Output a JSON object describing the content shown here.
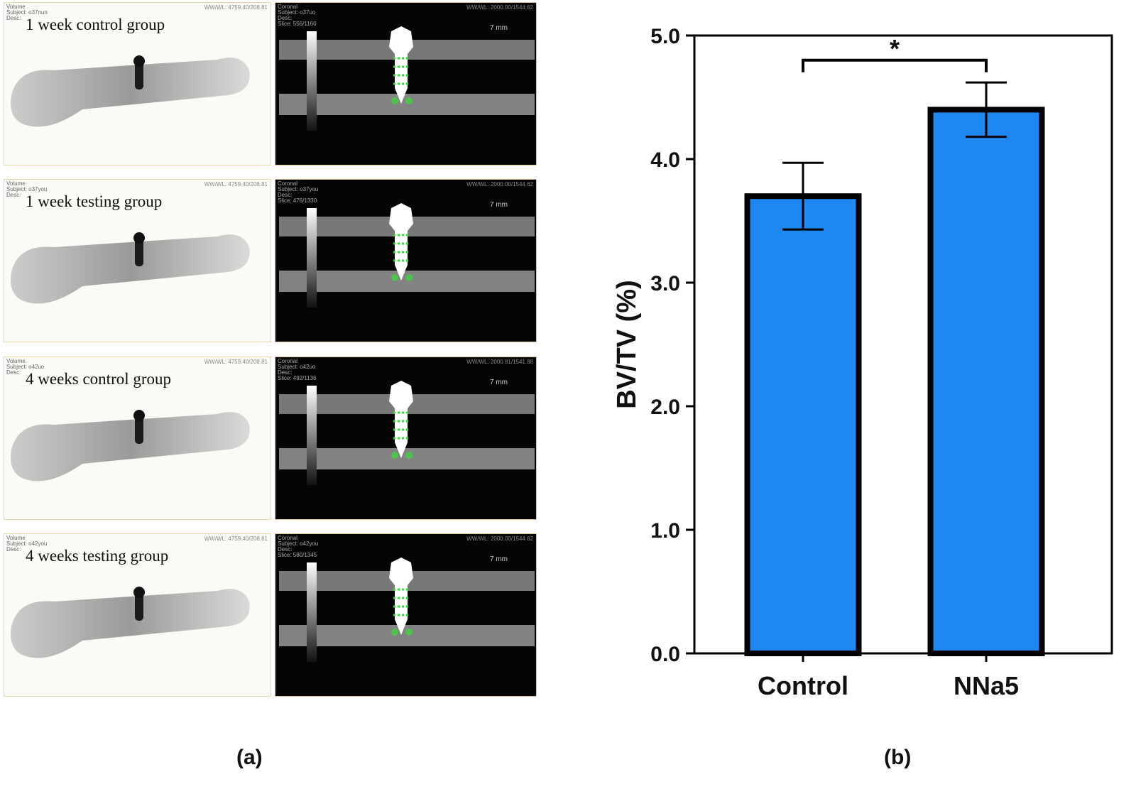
{
  "panel_a": {
    "caption": "(a)",
    "rows": [
      {
        "label": "1 week control group",
        "xray_meta": "Volume\nSubject: o37nun\nDesc:",
        "xray_meta_right": "WW/WL: 4759.40/208.81",
        "ct_meta": "Coronal\nSubject: o37uo\nDesc:\nSlice: 556/1160",
        "ct_meta_right": "WW/WL: 2000.00/1544.62",
        "scale": "7 mm"
      },
      {
        "label": "1 week testing group",
        "xray_meta": "Volume\nSubject: o37you\nDesc:",
        "xray_meta_right": "WW/WL: 4759.40/208.81",
        "ct_meta": "Coronal\nSubject: o37you\nDesc:\nSlice: 476/1330",
        "ct_meta_right": "WW/WL: 2000.00/1544.62",
        "scale": "7 mm"
      },
      {
        "label": "4 weeks control group",
        "xray_meta": "Volume\nSubject: o42uo\nDesc:",
        "xray_meta_right": "WW/WL: 4759.40/208.81",
        "ct_meta": "Coronal\nSubject: o42uo\nDesc:\nSlice: 492/1136",
        "ct_meta_right": "WW/WL: 2000.81/1541.88",
        "scale": "7 mm"
      },
      {
        "label": "4 weeks testing group",
        "xray_meta": "Volume\nSubject: o42you\nDesc:",
        "xray_meta_right": "WW/WL: 4759.40/208.81",
        "ct_meta": "Coronal\nSubject: o42you\nDesc:\nSlice: 580/1345",
        "ct_meta_right": "WW/WL: 2000.00/1544.62",
        "scale": "7 mm"
      }
    ]
  },
  "panel_b": {
    "caption": "(b)"
  },
  "colors": {
    "bar_fill": "#1e88f0",
    "bar_edge": "#000000",
    "roi_green": "#3fd43f"
  },
  "chart_data": {
    "type": "bar",
    "title": "",
    "xlabel": "",
    "ylabel": "BV/TV (%)",
    "categories": [
      "Control",
      "NNa5"
    ],
    "values": [
      3.7,
      4.4
    ],
    "errors": [
      0.27,
      0.22
    ],
    "ylim": [
      0,
      5.0
    ],
    "yticks": [
      "0.0",
      "1.0",
      "2.0",
      "3.0",
      "4.0",
      "5.0"
    ],
    "significance": {
      "between": [
        "Control",
        "NNa5"
      ],
      "label": "*"
    },
    "grid": false,
    "legend": "none"
  }
}
